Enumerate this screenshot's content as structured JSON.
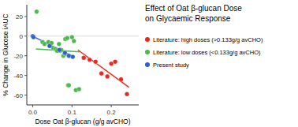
{
  "chart_data": {
    "type": "scatter",
    "title": [
      "Effect of Oat β-glucan Dose",
      "on Glycaemic Response"
    ],
    "x_label": "Dose Oat β-glucan (g/g avCHO)",
    "y_label": "% Change in Glucose iAUC",
    "xlim": [
      -0.015,
      0.27
    ],
    "ylim": [
      -70,
      32
    ],
    "xticks": [
      {
        "value": 0.0,
        "label": "0.0"
      },
      0.1,
      0.2
    ],
    "yticks": [
      20,
      0,
      -20,
      -40,
      -60
    ],
    "hline": 0,
    "series": [
      {
        "name": "Literature: high doses (>0.133g/g avCHO)",
        "color": "#e8281e",
        "x": [
          0.13,
          0.145,
          0.16,
          0.175,
          0.19,
          0.2,
          0.21,
          0.225,
          0.24
        ],
        "values": [
          -22,
          -24,
          -26,
          -38,
          -41,
          -28,
          -26,
          -44,
          -59
        ],
        "trend": {
          "x": [
            0.115,
            0.245
          ],
          "values": [
            -14,
            -52
          ]
        }
      },
      {
        "name": "Literature: low doses (<0.133g/g avCHO)",
        "color": "#4db84a",
        "x": [
          0.01,
          0.025,
          0.03,
          0.04,
          0.048,
          0.052,
          0.058,
          0.062,
          0.067,
          0.07,
          0.073,
          0.078,
          0.082,
          0.083,
          0.088,
          0.09,
          0.092,
          0.1,
          0.105,
          0.11,
          0.118
        ],
        "values": [
          25,
          -6,
          -8,
          -6,
          -7,
          -12,
          -13,
          -15,
          -8,
          -15,
          -14,
          -20,
          -18,
          -3,
          -2,
          -50,
          -50,
          -1,
          -5,
          -55,
          -54
        ],
        "trend": {
          "x": [
            0.008,
            0.12
          ],
          "values": [
            -13,
            -16
          ]
        }
      },
      {
        "name": "Present study",
        "color": "#2c5fcc",
        "x": [
          0.0,
          0.002,
          0.043,
          0.068,
          0.082,
          0.092,
          0.102
        ],
        "values": [
          0,
          -1,
          -10,
          -14,
          -17,
          -20,
          -21
        ],
        "trend": {
          "x": [
            0.0,
            0.104
          ],
          "values": [
            0,
            -21
          ]
        }
      }
    ]
  }
}
